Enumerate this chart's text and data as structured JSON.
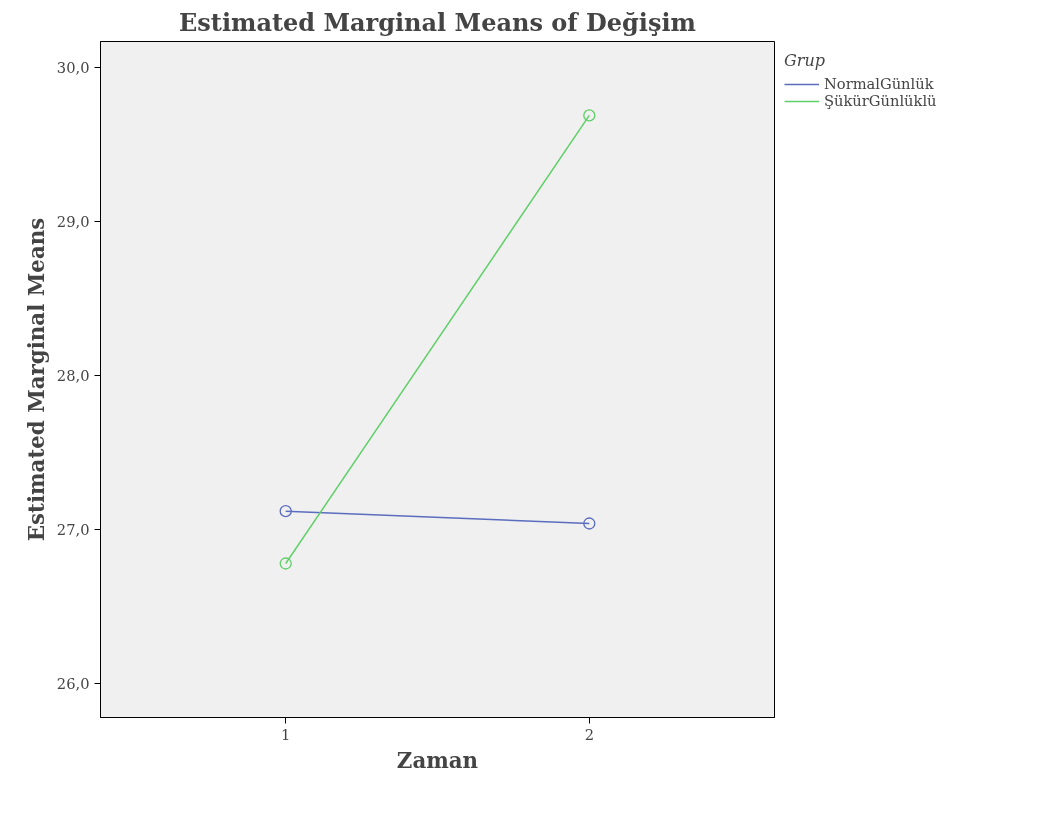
{
  "chart_data": {
    "type": "line",
    "title": "Estimated Marginal Means of Değişim",
    "xlabel": "Zaman",
    "ylabel": "Estimated Marginal Means",
    "legend_title": "Grup",
    "x": [
      1,
      2
    ],
    "xlim": [
      0.39,
      2.61
    ],
    "xticks": [
      1,
      2
    ],
    "ylim": [
      25.78,
      30.17
    ],
    "yticks": [
      {
        "value": 26,
        "label": "26,0"
      },
      {
        "value": 27,
        "label": "27,0"
      },
      {
        "value": 28,
        "label": "28,0"
      },
      {
        "value": 29,
        "label": "29,0"
      },
      {
        "value": 30,
        "label": "30,0"
      }
    ],
    "marker": "circle",
    "legend": "right",
    "grid": false,
    "series": [
      {
        "name": "NormalGünlük",
        "color": "#5b6dbf",
        "values": [
          27.12,
          27.04
        ]
      },
      {
        "name": "ŞükürGünlüklü",
        "color": "#5fd068",
        "values": [
          26.78,
          29.69
        ]
      }
    ]
  }
}
